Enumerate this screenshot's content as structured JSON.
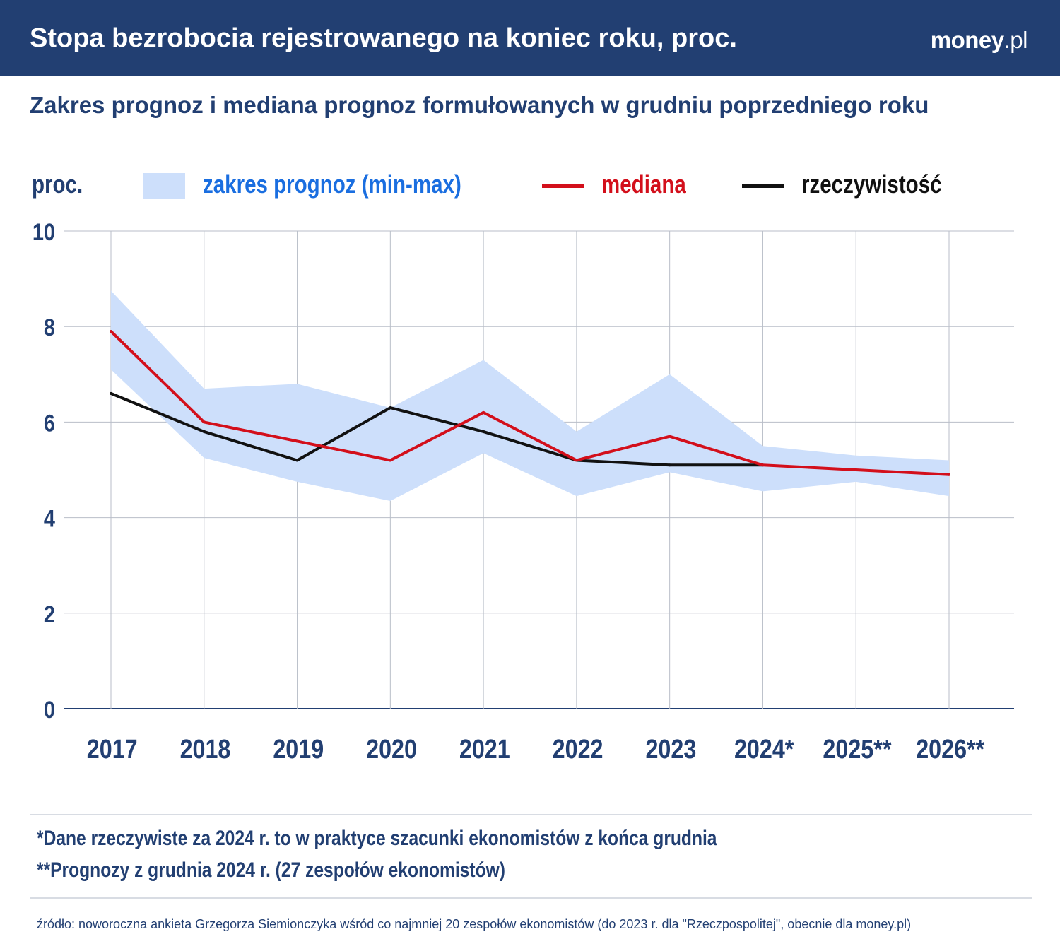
{
  "header": {
    "title": "Stopa bezrobocia rejestrowanego na koniec roku, proc.",
    "logo": "money.pl",
    "logo_main": "money",
    "logo_suffix": ".pl"
  },
  "subtitle": "Zakres prognoz i mediana prognoz formułowanych w grudniu poprzedniego roku",
  "colors": {
    "header": "#223f72",
    "band": "#cddffb",
    "median": "#d30f1b",
    "actual": "#111111",
    "text": "#223f72"
  },
  "chart_data": {
    "type": "line",
    "ylabel": "proc.",
    "ylim": [
      0,
      10
    ],
    "yticks": [
      "0",
      "2",
      "4",
      "6",
      "8",
      "10"
    ],
    "grid": true,
    "legend_position": "top",
    "categories": [
      "2017",
      "2018",
      "2019",
      "2020",
      "2021",
      "2022",
      "2023",
      "2024*",
      "2025**",
      "2026**"
    ],
    "band": {
      "name": "zakres prognoz (min-max)",
      "min": [
        7.1,
        5.25,
        4.75,
        4.35,
        5.35,
        4.45,
        4.95,
        4.55,
        4.75,
        4.45
      ],
      "max": [
        8.75,
        6.7,
        6.8,
        6.3,
        7.3,
        5.8,
        7.0,
        5.5,
        5.3,
        5.2
      ]
    },
    "series": [
      {
        "name": "mediana",
        "values": [
          7.9,
          6.0,
          5.6,
          5.2,
          6.2,
          5.2,
          5.7,
          5.1,
          5.0,
          4.9
        ]
      },
      {
        "name": "rzeczywistość",
        "values": [
          6.6,
          5.8,
          5.2,
          6.3,
          5.8,
          5.2,
          5.1,
          5.1,
          null,
          null
        ]
      }
    ]
  },
  "notes": [
    "*Dane rzeczywiste za 2024 r. to w praktyce szacunki ekonomistów z końca grudnia",
    "**Prognozy z grudnia 2024 r. (27 zespołów ekonomistów)"
  ],
  "source": "źródło: noworoczna ankieta Grzegorza Siemionczyka wśród co najmniej 20 zespołów ekonomistów (do 2023 r. dla \"Rzeczpospolitej\", obecnie dla money.pl)"
}
